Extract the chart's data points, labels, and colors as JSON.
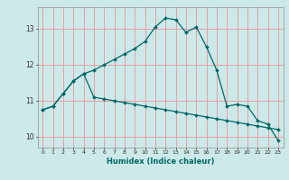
{
  "title": "",
  "xlabel": "Humidex (Indice chaleur)",
  "ylabel": "",
  "bg_color": "#cce8e8",
  "grid_color": "#e8a0a0",
  "line_color": "#006868",
  "figsize": [
    3.2,
    2.0
  ],
  "dpi": 100,
  "xlim": [
    -0.5,
    23.5
  ],
  "ylim": [
    9.7,
    13.6
  ],
  "yticks": [
    10,
    11,
    12,
    13
  ],
  "xticks": [
    0,
    1,
    2,
    3,
    4,
    5,
    6,
    7,
    8,
    9,
    10,
    11,
    12,
    13,
    14,
    15,
    16,
    17,
    18,
    19,
    20,
    21,
    22,
    23
  ],
  "line1_x": [
    0,
    1,
    2,
    3,
    4,
    5,
    6,
    7,
    8,
    9,
    10,
    11,
    12,
    13,
    14,
    15,
    16,
    17,
    18,
    19,
    20,
    21,
    22,
    23
  ],
  "line1_y": [
    10.75,
    10.85,
    11.2,
    11.55,
    11.75,
    11.85,
    12.0,
    12.15,
    12.3,
    12.45,
    12.65,
    13.05,
    13.3,
    13.25,
    12.9,
    13.05,
    12.5,
    11.85,
    10.85,
    10.9,
    10.85,
    10.45,
    10.35,
    9.9
  ],
  "line2_x": [
    0,
    1,
    2,
    3,
    4,
    5,
    6,
    7,
    8,
    9,
    10,
    11,
    12,
    13,
    14,
    15,
    16,
    17,
    18,
    19,
    20,
    21,
    22,
    23
  ],
  "line2_y": [
    10.75,
    10.85,
    11.2,
    11.55,
    11.75,
    11.1,
    11.05,
    11.0,
    10.95,
    10.9,
    10.85,
    10.8,
    10.75,
    10.7,
    10.65,
    10.6,
    10.55,
    10.5,
    10.45,
    10.4,
    10.35,
    10.3,
    10.25,
    10.2
  ]
}
